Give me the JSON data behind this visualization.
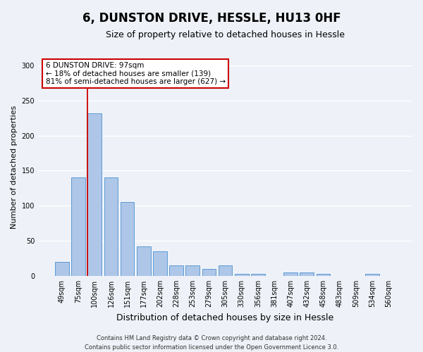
{
  "title": "6, DUNSTON DRIVE, HESSLE, HU13 0HF",
  "subtitle": "Size of property relative to detached houses in Hessle",
  "xlabel": "Distribution of detached houses by size in Hessle",
  "ylabel": "Number of detached properties",
  "categories": [
    "49sqm",
    "75sqm",
    "100sqm",
    "126sqm",
    "151sqm",
    "177sqm",
    "202sqm",
    "228sqm",
    "253sqm",
    "279sqm",
    "305sqm",
    "330sqm",
    "356sqm",
    "381sqm",
    "407sqm",
    "432sqm",
    "458sqm",
    "483sqm",
    "509sqm",
    "534sqm",
    "560sqm"
  ],
  "values": [
    20,
    140,
    232,
    140,
    105,
    42,
    35,
    15,
    15,
    10,
    15,
    3,
    3,
    0,
    5,
    5,
    3,
    0,
    0,
    3,
    0
  ],
  "bar_color": "#aec6e8",
  "bar_edge_color": "#5b9bd5",
  "highlight_index": 2,
  "highlight_color": "#cc0000",
  "ylim": [
    0,
    310
  ],
  "yticks": [
    0,
    50,
    100,
    150,
    200,
    250,
    300
  ],
  "annotation_text": "6 DUNSTON DRIVE: 97sqm\n← 18% of detached houses are smaller (139)\n81% of semi-detached houses are larger (627) →",
  "annotation_box_color": "#ffffff",
  "annotation_box_edge": "#cc0000",
  "footer_text": "Contains HM Land Registry data © Crown copyright and database right 2024.\nContains public sector information licensed under the Open Government Licence 3.0.",
  "background_color": "#eef2f8",
  "grid_color": "#ffffff",
  "title_fontsize": 12,
  "subtitle_fontsize": 9,
  "ylabel_fontsize": 8,
  "xlabel_fontsize": 9,
  "tick_fontsize": 7,
  "annot_fontsize": 7.5,
  "footer_fontsize": 6
}
